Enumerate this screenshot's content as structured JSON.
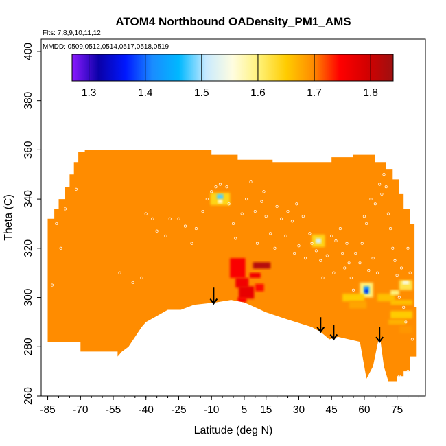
{
  "chart_data": {
    "type": "heatmap",
    "title": "ATOM4 Northbound OADensity_PM1_AMS",
    "flights_note": "Flts: 7,8,9,10,11,12",
    "mmdd_note": "MMDD: 0509,0512,0514,0517,0518,0519",
    "xlabel": "Latitude (deg N)",
    "ylabel": "Theta (C)",
    "xlim": [
      -88,
      88
    ],
    "ylim": [
      260,
      405
    ],
    "x_ticks": [
      -85,
      -70,
      -55,
      -40,
      -25,
      -10,
      5,
      15,
      30,
      45,
      60,
      75
    ],
    "x_tick_labels": [
      "-85",
      "-70",
      "-55",
      "-40",
      "-25",
      "-10",
      "5",
      "15",
      "30",
      "45",
      "60",
      "75"
    ],
    "y_ticks": [
      260,
      280,
      300,
      320,
      340,
      360,
      380,
      400
    ],
    "y_tick_labels": [
      "260",
      "280",
      "300",
      "320",
      "340",
      "360",
      "380",
      "400"
    ],
    "colorbar": {
      "min": 1.27,
      "max": 1.84,
      "ticks": [
        1.3,
        1.4,
        1.5,
        1.6,
        1.7,
        1.8
      ],
      "tick_labels": [
        "1.3",
        "1.4",
        "1.5",
        "1.6",
        "1.7",
        "1.8"
      ],
      "colors": [
        "#8b1aff",
        "#0a00a8",
        "#0018ff",
        "#1a8cff",
        "#00b8ff",
        "#c8eaff",
        "#fffde0",
        "#fff176",
        "#ffcc00",
        "#ff8c00",
        "#ff0000",
        "#d40000",
        "#9e1010"
      ]
    },
    "background_value": 1.71,
    "fill_color": "#ff8c00",
    "domain_top": [
      [
        -85,
        332
      ],
      [
        -82,
        332
      ],
      [
        -82,
        336
      ],
      [
        -80,
        336
      ],
      [
        -80,
        340
      ],
      [
        -77,
        340
      ],
      [
        -77,
        345
      ],
      [
        -75,
        345
      ],
      [
        -75,
        350
      ],
      [
        -73,
        350
      ],
      [
        -73,
        355
      ],
      [
        -71,
        355
      ],
      [
        -71,
        359
      ],
      [
        -68,
        359
      ],
      [
        -68,
        360
      ],
      [
        -10,
        360
      ],
      [
        -10,
        358
      ],
      [
        2,
        358
      ],
      [
        2,
        356
      ],
      [
        18,
        356
      ],
      [
        18,
        355
      ],
      [
        35,
        355
      ],
      [
        35,
        355
      ],
      [
        45,
        355
      ],
      [
        45,
        357
      ],
      [
        55,
        357
      ],
      [
        55,
        358
      ],
      [
        65,
        358
      ],
      [
        65,
        355
      ],
      [
        70,
        355
      ],
      [
        70,
        352
      ],
      [
        73,
        352
      ],
      [
        73,
        348
      ],
      [
        76,
        348
      ],
      [
        76,
        342
      ],
      [
        78,
        342
      ],
      [
        78,
        336
      ],
      [
        81,
        336
      ],
      [
        81,
        330
      ],
      [
        83,
        330
      ],
      [
        83,
        296
      ],
      [
        84,
        296
      ],
      [
        84,
        276
      ]
    ],
    "domain_bottom": [
      [
        84,
        276
      ],
      [
        81,
        276
      ],
      [
        81,
        270
      ],
      [
        78,
        270
      ],
      [
        78,
        268
      ],
      [
        75,
        268
      ],
      [
        75,
        266
      ],
      [
        71,
        266
      ],
      [
        69,
        272
      ],
      [
        67,
        285
      ],
      [
        64,
        272
      ],
      [
        61,
        267
      ],
      [
        58,
        282
      ],
      [
        53,
        283
      ],
      [
        48,
        284
      ],
      [
        44,
        283
      ],
      [
        40,
        286
      ],
      [
        36,
        288
      ],
      [
        25,
        291
      ],
      [
        15,
        294
      ],
      [
        5,
        298
      ],
      [
        -1,
        299
      ],
      [
        -8,
        298
      ],
      [
        -18,
        297
      ],
      [
        -24,
        295
      ],
      [
        -30,
        295
      ],
      [
        -36,
        292
      ],
      [
        -40,
        290
      ],
      [
        -42,
        288
      ],
      [
        -48,
        280
      ],
      [
        -51,
        278
      ],
      [
        -53,
        276
      ],
      [
        -53,
        278
      ],
      [
        -60,
        278
      ],
      [
        -60,
        278
      ],
      [
        -70,
        278
      ],
      [
        -70,
        282
      ],
      [
        -80,
        282
      ],
      [
        -80,
        282
      ],
      [
        -85,
        282
      ]
    ],
    "anomalies": [
      {
        "lat": 2,
        "theta": 312,
        "w": 7,
        "h": 8,
        "value": 1.75
      },
      {
        "lat": 13,
        "theta": 313,
        "w": 8,
        "h": 2.5,
        "value": 1.82
      },
      {
        "lat": 10,
        "theta": 309,
        "w": 5,
        "h": 2,
        "value": 1.76
      },
      {
        "lat": 4,
        "theta": 306,
        "w": 6,
        "h": 4,
        "value": 1.76
      },
      {
        "lat": 6,
        "theta": 302,
        "w": 7,
        "h": 5,
        "value": 1.77
      },
      {
        "lat": 4,
        "theta": 299,
        "w": 4,
        "h": 2,
        "value": 1.75
      },
      {
        "lat": 12,
        "theta": 304,
        "w": 4,
        "h": 3,
        "value": 1.74
      },
      {
        "lat": -6,
        "theta": 340,
        "w": 9,
        "h": 5,
        "value": 1.64
      },
      {
        "lat": -6,
        "theta": 341,
        "w": 3,
        "h": 2,
        "value": 1.48
      },
      {
        "lat": -6,
        "theta": 339,
        "w": 2,
        "h": 1.5,
        "value": 1.56
      },
      {
        "lat": 39,
        "theta": 323,
        "w": 6,
        "h": 5,
        "value": 1.64
      },
      {
        "lat": 39,
        "theta": 323,
        "w": 2.5,
        "h": 2,
        "value": 1.52
      },
      {
        "lat": 61,
        "theta": 303,
        "w": 6,
        "h": 6,
        "value": 1.6
      },
      {
        "lat": 61,
        "theta": 303,
        "w": 2.5,
        "h": 3,
        "value": 1.42
      },
      {
        "lat": 61,
        "theta": 302.5,
        "w": 1.2,
        "h": 1.5,
        "value": 1.35
      },
      {
        "lat": 55,
        "theta": 300,
        "w": 10,
        "h": 3,
        "value": 1.65
      },
      {
        "lat": 57,
        "theta": 297,
        "w": 8,
        "h": 3,
        "value": 1.68
      },
      {
        "lat": 70,
        "theta": 300,
        "w": 8,
        "h": 3,
        "value": 1.66
      },
      {
        "lat": 74,
        "theta": 302,
        "w": 4,
        "h": 2,
        "value": 1.6
      },
      {
        "lat": 79,
        "theta": 305,
        "w": 6,
        "h": 4,
        "value": 1.62
      },
      {
        "lat": 79,
        "theta": 306,
        "w": 3,
        "h": 1.5,
        "value": 1.55
      },
      {
        "lat": 77,
        "theta": 298,
        "w": 10,
        "h": 2,
        "value": 1.66
      },
      {
        "lat": 77,
        "theta": 293,
        "w": 10,
        "h": 3,
        "value": 1.65
      },
      {
        "lat": 75,
        "theta": 290,
        "w": 8,
        "h": 2,
        "value": 1.67
      },
      {
        "lat": 79,
        "theta": 287,
        "w": 6,
        "h": 3,
        "value": 1.69
      }
    ],
    "arrows": [
      {
        "lat": -9,
        "theta_top": 304,
        "theta_tip": 297.5
      },
      {
        "lat": 40,
        "theta_top": 292,
        "theta_tip": 286
      },
      {
        "lat": 46,
        "theta_top": 289,
        "theta_tip": 283
      },
      {
        "lat": 67,
        "theta_top": 288,
        "theta_tip": 282
      }
    ],
    "sample_points": [
      [
        -81,
        330
      ],
      [
        -79,
        320
      ],
      [
        -77,
        336
      ],
      [
        -76,
        348
      ],
      [
        -74,
        352
      ],
      [
        -72,
        344
      ],
      [
        -52,
        310
      ],
      [
        -46,
        306
      ],
      [
        -42,
        308
      ],
      [
        -40,
        334
      ],
      [
        -37,
        332
      ],
      [
        -35,
        327
      ],
      [
        -31,
        325
      ],
      [
        -29,
        332
      ],
      [
        -25,
        332
      ],
      [
        -22,
        329
      ],
      [
        -19,
        322
      ],
      [
        -17,
        328
      ],
      [
        -14,
        335
      ],
      [
        -12,
        340
      ],
      [
        -10,
        343
      ],
      [
        -8,
        345
      ],
      [
        -6,
        346
      ],
      [
        -3,
        345
      ],
      [
        -2,
        338
      ],
      [
        0,
        330
      ],
      [
        1,
        324
      ],
      [
        4,
        334
      ],
      [
        6,
        340
      ],
      [
        8,
        347
      ],
      [
        10,
        335
      ],
      [
        11,
        322
      ],
      [
        13,
        339
      ],
      [
        14,
        343
      ],
      [
        15,
        333
      ],
      [
        17,
        326
      ],
      [
        19,
        320
      ],
      [
        20,
        337
      ],
      [
        22,
        332
      ],
      [
        24,
        325
      ],
      [
        25,
        335
      ],
      [
        27,
        331
      ],
      [
        28,
        318
      ],
      [
        29,
        338
      ],
      [
        30,
        321
      ],
      [
        32,
        333
      ],
      [
        33,
        316
      ],
      [
        35,
        326
      ],
      [
        36,
        322
      ],
      [
        38,
        319
      ],
      [
        40,
        315
      ],
      [
        41,
        308
      ],
      [
        43,
        317
      ],
      [
        45,
        325
      ],
      [
        46,
        310
      ],
      [
        47,
        323
      ],
      [
        49,
        328
      ],
      [
        50,
        318
      ],
      [
        51,
        312
      ],
      [
        52,
        322
      ],
      [
        53,
        314
      ],
      [
        54,
        308
      ],
      [
        55,
        303
      ],
      [
        56,
        318
      ],
      [
        58,
        314
      ],
      [
        59,
        322
      ],
      [
        60,
        333
      ],
      [
        61,
        330
      ],
      [
        62,
        311
      ],
      [
        63,
        340
      ],
      [
        64,
        316
      ],
      [
        65,
        338
      ],
      [
        66,
        310
      ],
      [
        67,
        346
      ],
      [
        68,
        342
      ],
      [
        69,
        350
      ],
      [
        70,
        345
      ],
      [
        71,
        334
      ],
      [
        72,
        328
      ],
      [
        73,
        320
      ],
      [
        74,
        315
      ],
      [
        75,
        309
      ],
      [
        76,
        300
      ],
      [
        77,
        312
      ],
      [
        78,
        296
      ],
      [
        79,
        290
      ],
      [
        80,
        320
      ],
      [
        81,
        310
      ],
      [
        82,
        283
      ],
      [
        80,
        270
      ],
      [
        76,
        268
      ],
      [
        -83,
        305
      ]
    ]
  }
}
